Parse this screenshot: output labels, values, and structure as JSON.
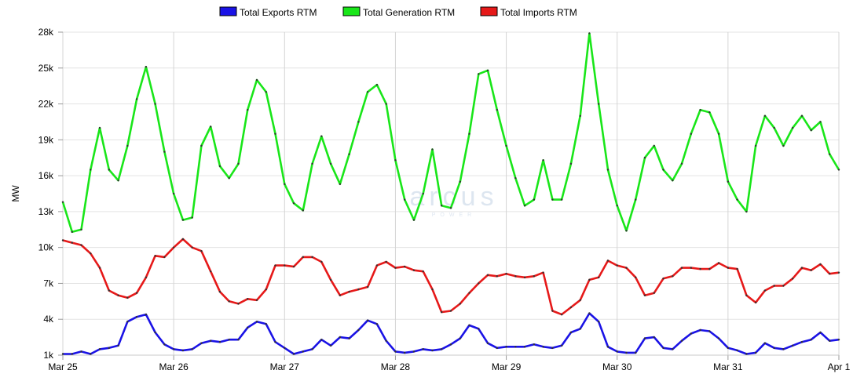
{
  "chart_data": {
    "type": "line",
    "title": "",
    "xlabel": "",
    "ylabel": "MW",
    "ylim": [
      1000,
      28000
    ],
    "yticks": [
      1000,
      4000,
      7000,
      10000,
      13000,
      16000,
      19000,
      22000,
      25000,
      28000
    ],
    "ytick_labels": [
      "1k",
      "4k",
      "7k",
      "10k",
      "13k",
      "16k",
      "19k",
      "22k",
      "25k",
      "28k"
    ],
    "x_unit": "hours since Mar 25 00:00",
    "xlim": [
      0,
      168
    ],
    "xticks": [
      0,
      24,
      48,
      72,
      96,
      120,
      144,
      168
    ],
    "xtick_labels": [
      "Mar 25",
      "Mar 26",
      "Mar 27",
      "Mar 28",
      "Mar 29",
      "Mar 30",
      "Mar 31",
      "Apr 1"
    ],
    "grid": true,
    "legend_position": "top-center",
    "watermark": "arcus POWER",
    "x_step_hours": 2,
    "series": [
      {
        "name": "Total Exports RTM",
        "color": "#1a12e6",
        "values": [
          1100,
          1100,
          1300,
          1100,
          1500,
          1600,
          1800,
          3800,
          4200,
          4400,
          2900,
          1900,
          1500,
          1400,
          1500,
          2000,
          2200,
          2100,
          2300,
          2300,
          3300,
          3800,
          3600,
          2100,
          1600,
          1100,
          1300,
          1500,
          2300,
          1800,
          2500,
          2400,
          3100,
          3900,
          3600,
          2200,
          1300,
          1200,
          1300,
          1500,
          1400,
          1500,
          1900,
          2400,
          3500,
          3200,
          2000,
          1600,
          1700,
          1700,
          1700,
          1900,
          1700,
          1600,
          1800,
          2900,
          3200,
          4500,
          3800,
          1700,
          1300,
          1200,
          1200,
          2400,
          2500,
          1600,
          1500,
          2200,
          2800,
          3100,
          3000,
          2400,
          1600,
          1400,
          1100,
          1200,
          2000,
          1600,
          1500,
          1800,
          2100,
          2300,
          2900,
          2200,
          2300
        ]
      },
      {
        "name": "Total Generation RTM",
        "color": "#19e619",
        "values": [
          13800,
          11300,
          11500,
          16500,
          20000,
          16500,
          15600,
          18500,
          22400,
          25100,
          22000,
          18000,
          14500,
          12300,
          12500,
          18500,
          20100,
          16800,
          15800,
          17000,
          21500,
          24000,
          23000,
          19500,
          15300,
          13700,
          13100,
          17000,
          19300,
          17000,
          15300,
          17800,
          20500,
          23000,
          23600,
          22000,
          17300,
          14000,
          12300,
          14500,
          18200,
          13500,
          13300,
          15500,
          19500,
          24500,
          24800,
          21500,
          18500,
          15800,
          13500,
          14000,
          17300,
          14000,
          14000,
          17000,
          21000,
          27900,
          22000,
          16500,
          13500,
          11400,
          14000,
          17500,
          18500,
          16500,
          15600,
          17000,
          19500,
          21500,
          21300,
          19500,
          15500,
          14000,
          13000,
          18500,
          21000,
          20000,
          18500,
          20000,
          21000,
          19800,
          20500,
          17800,
          16500
        ]
      },
      {
        "name": "Total Imports RTM",
        "color": "#e61919",
        "values": [
          10600,
          10400,
          10200,
          9500,
          8300,
          6400,
          6000,
          5800,
          6200,
          7500,
          9300,
          9200,
          10000,
          10700,
          10000,
          9700,
          8000,
          6300,
          5500,
          5300,
          5700,
          5600,
          6500,
          8500,
          8500,
          8400,
          9200,
          9200,
          8800,
          7300,
          6000,
          6300,
          6500,
          6700,
          8500,
          8800,
          8300,
          8400,
          8100,
          8000,
          6500,
          4600,
          4700,
          5300,
          6200,
          7000,
          7700,
          7600,
          7800,
          7600,
          7500,
          7600,
          7900,
          4700,
          4400,
          5000,
          5600,
          7300,
          7500,
          8900,
          8500,
          8300,
          7500,
          6000,
          6200,
          7400,
          7600,
          8300,
          8300,
          8200,
          8200,
          8700,
          8300,
          8200,
          6000,
          5400,
          6400,
          6800,
          6800,
          7400,
          8300,
          8100,
          8600,
          7800,
          7900
        ]
      }
    ]
  }
}
